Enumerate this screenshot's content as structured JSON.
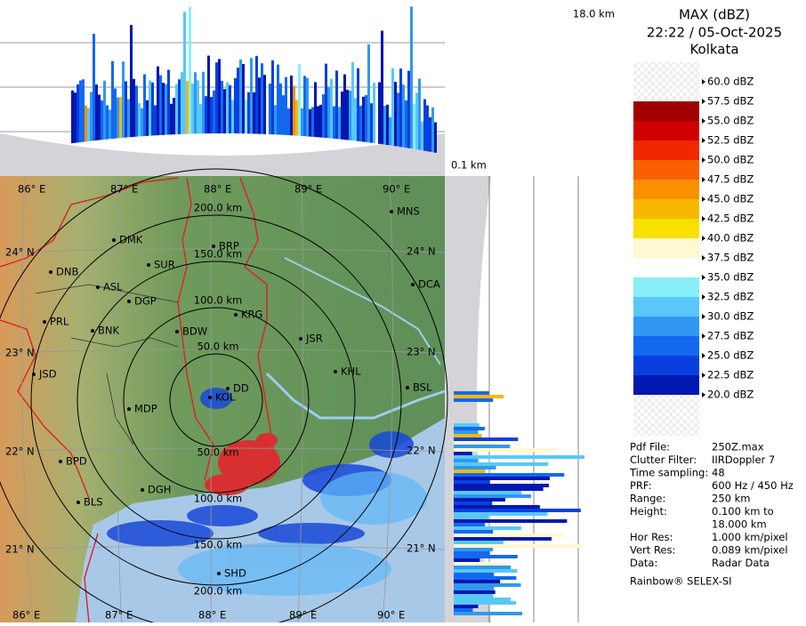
{
  "header": {
    "title": "MAX (dBZ)",
    "time": "22:22 / 05-Oct-2025",
    "site": "Kolkata"
  },
  "heights": {
    "top": "18.0 km",
    "bottom": "0.1 km"
  },
  "legend": [
    {
      "label": "60.0 dBZ"
    },
    {
      "label": "57.5 dBZ",
      "color": "#a00000"
    },
    {
      "label": "55.0 dBZ",
      "color": "#d00000"
    },
    {
      "label": "52.5 dBZ",
      "color": "#f02800"
    },
    {
      "label": "50.0 dBZ",
      "color": "#f86000"
    },
    {
      "label": "47.5 dBZ",
      "color": "#f89000"
    },
    {
      "label": "45.0 dBZ",
      "color": "#f8b800"
    },
    {
      "label": "42.5 dBZ",
      "color": "#f8e000"
    },
    {
      "label": "40.0 dBZ",
      "color": "#fff8d0"
    },
    {
      "label": "37.5 dBZ",
      "color": "#ffffff"
    },
    {
      "label": "35.0 dBZ",
      "color": "#88eef8"
    },
    {
      "label": "32.5 dBZ",
      "color": "#58c8f8"
    },
    {
      "label": "30.0 dBZ",
      "color": "#3098f0"
    },
    {
      "label": "27.5 dBZ",
      "color": "#1468f0"
    },
    {
      "label": "25.0 dBZ",
      "color": "#0840e0"
    },
    {
      "label": "22.5 dBZ",
      "color": "#0018b0"
    },
    {
      "label": "20.0 dBZ"
    }
  ],
  "info": [
    {
      "key": "Pdf File:",
      "value": "250Z.max"
    },
    {
      "key": "Clutter Filter:",
      "value": "IIRDoppler 7"
    },
    {
      "key": "Time sampling:",
      "value": "48"
    },
    {
      "key": "PRF:",
      "value": "600 Hz / 450 Hz"
    },
    {
      "key": "Range:",
      "value": "250 km"
    },
    {
      "key": "Height:",
      "value": "0.100 km to",
      "value2": "18.000 km"
    },
    {
      "key": "Hor Res:",
      "value": "1.000 km/pixel"
    },
    {
      "key": "Vert Res:",
      "value": "0.089 km/pixel"
    },
    {
      "key": "Data:",
      "value": "Radar Data"
    }
  ],
  "credit": "Rainbow® SELEX-SI",
  "map": {
    "longitudes": [
      "86° E",
      "87° E",
      "88° E",
      "89° E",
      "90° E"
    ],
    "latitudes": [
      "24° N",
      "23° N",
      "22° N",
      "21° N"
    ],
    "rings": [
      "50.0 km",
      "100.0 km",
      "150.0 km",
      "200.0 km"
    ],
    "cities": [
      "MNS",
      "DMK",
      "BRP",
      "SUR",
      "DNB",
      "ASL",
      "DCA",
      "DGP",
      "KRG",
      "PRL",
      "BNK",
      "BDW",
      "JSR",
      "KHL",
      "JSD",
      "DD",
      "KOL",
      "BSL",
      "MDP",
      "BPD",
      "DGH",
      "BLS",
      "SHD"
    ]
  }
}
